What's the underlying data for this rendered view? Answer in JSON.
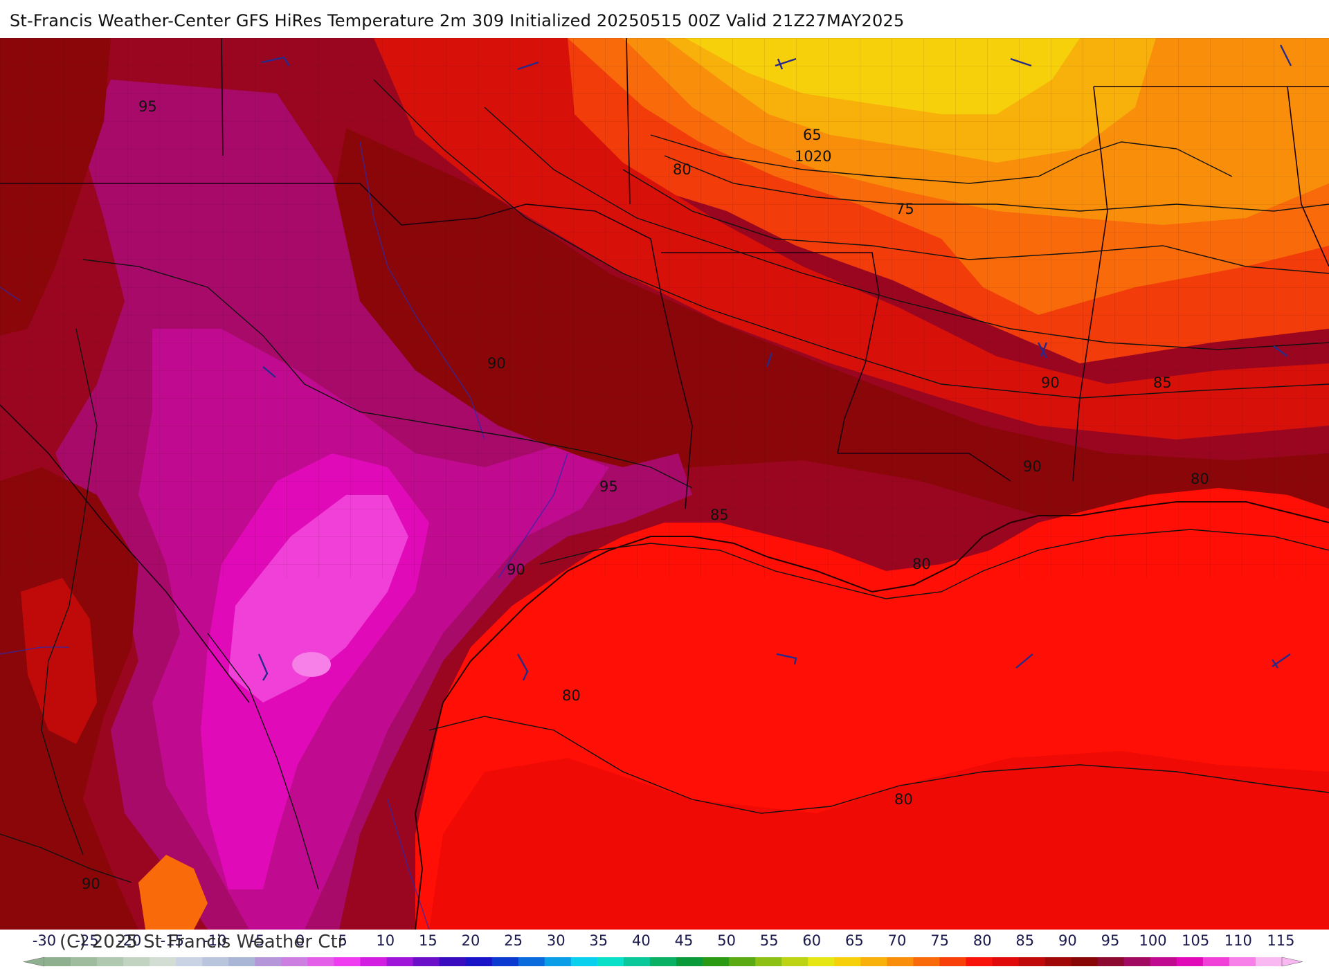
{
  "title": "St-Francis Weather-Center GFS HiRes Temperature 2m  309 Initialized 20250515 00Z Valid 21Z27MAY2025",
  "copyright": "(C) 2025 St Francis Weather Ctr",
  "contour_labels": [
    {
      "id": "lbl-95-nw",
      "text": "95"
    },
    {
      "id": "lbl-65",
      "text": "65"
    },
    {
      "id": "lbl-1020",
      "text": "1020"
    },
    {
      "id": "lbl-80-ne",
      "text": "80"
    },
    {
      "id": "lbl-75",
      "text": "75"
    },
    {
      "id": "lbl-90-c",
      "text": "90"
    },
    {
      "id": "lbl-90-e",
      "text": "90"
    },
    {
      "id": "lbl-85-e",
      "text": "85"
    },
    {
      "id": "lbl-90-e2",
      "text": "90"
    },
    {
      "id": "lbl-80-e",
      "text": "80"
    },
    {
      "id": "lbl-95-c",
      "text": "95"
    },
    {
      "id": "lbl-85-c",
      "text": "85"
    },
    {
      "id": "lbl-80-la",
      "text": "80"
    },
    {
      "id": "lbl-90-tx",
      "text": "90"
    },
    {
      "id": "lbl-80-gulf",
      "text": "80"
    },
    {
      "id": "lbl-80-gulf2",
      "text": "80"
    },
    {
      "id": "lbl-90-sw",
      "text": "90"
    }
  ],
  "legend": {
    "ticks": [
      "-30",
      "-25",
      "-20",
      "-15",
      "-10",
      "-5",
      "0",
      "5",
      "10",
      "15",
      "20",
      "25",
      "30",
      "35",
      "40",
      "45",
      "50",
      "55",
      "60",
      "65",
      "70",
      "75",
      "80",
      "85",
      "90",
      "95",
      "100",
      "105",
      "110",
      "115"
    ],
    "colors": [
      "#8fb08f",
      "#9fbc9f",
      "#b0c8b0",
      "#c2d3c2",
      "#d3ddd3",
      "#c9d3e3",
      "#b9c5dd",
      "#a9b6d6",
      "#b496d9",
      "#cc7fe0",
      "#e35fe8",
      "#f03cf0",
      "#d21ee0",
      "#a016d8",
      "#6b10c8",
      "#3a0cc0",
      "#1a14c8",
      "#0a3ad0",
      "#0a6cdc",
      "#0a9ee6",
      "#0ad0ee",
      "#0ae0c8",
      "#0ac89a",
      "#0ab064",
      "#0a9a3a",
      "#2a9a14",
      "#5aaa14",
      "#8cc014",
      "#bcd414",
      "#e6e614",
      "#f6d00a",
      "#f8b00a",
      "#f88e0a",
      "#f86a0a",
      "#f8400a",
      "#f8140a",
      "#e00a0a",
      "#c00a0a",
      "#a00808",
      "#880606",
      "#8c0a30",
      "#a00a60",
      "#c00a90",
      "#e00ab8",
      "#f040d8",
      "#f680e8",
      "#fab8f2"
    ]
  },
  "icons": [
    "wind-barb-icon"
  ]
}
